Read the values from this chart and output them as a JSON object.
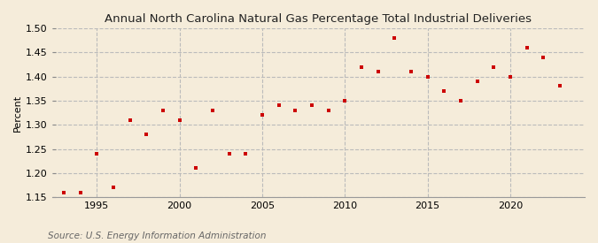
{
  "title": "Annual North Carolina Natural Gas Percentage Total Industrial Deliveries",
  "ylabel": "Percent",
  "source": "Source: U.S. Energy Information Administration",
  "background_color": "#f5ecda",
  "plot_background_color": "#f5ecda",
  "marker_color": "#cc0000",
  "years": [
    1993,
    1994,
    1995,
    1996,
    1997,
    1998,
    1999,
    2000,
    2001,
    2002,
    2003,
    2004,
    2005,
    2006,
    2007,
    2008,
    2009,
    2010,
    2011,
    2012,
    2013,
    2014,
    2015,
    2016,
    2017,
    2018,
    2019,
    2020,
    2021,
    2022,
    2023
  ],
  "values": [
    1.16,
    1.16,
    1.24,
    1.17,
    1.31,
    1.28,
    1.33,
    1.31,
    1.21,
    1.33,
    1.24,
    1.24,
    1.32,
    1.34,
    1.33,
    1.34,
    1.33,
    1.35,
    1.42,
    1.41,
    1.48,
    1.41,
    1.4,
    1.37,
    1.35,
    1.39,
    1.42,
    1.4,
    1.46,
    1.44,
    1.38
  ],
  "ylim": [
    1.15,
    1.5
  ],
  "yticks": [
    1.15,
    1.2,
    1.25,
    1.3,
    1.35,
    1.4,
    1.45,
    1.5
  ],
  "xticks": [
    1995,
    2000,
    2005,
    2010,
    2015,
    2020
  ],
  "xlim": [
    1992.3,
    2024.5
  ],
  "grid_color": "#bbbbbb",
  "vline_color": "#bbbbbb",
  "title_fontsize": 9.5,
  "tick_fontsize": 8,
  "source_fontsize": 7.5
}
